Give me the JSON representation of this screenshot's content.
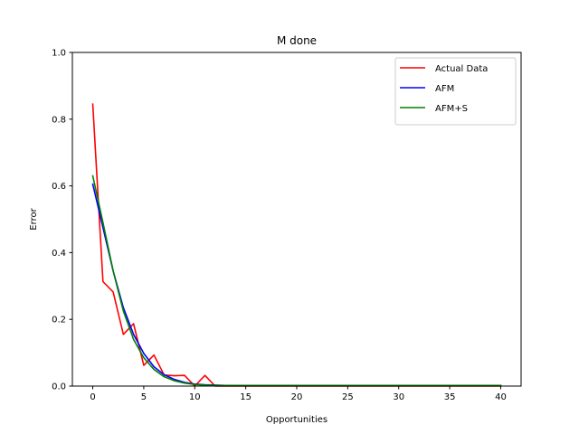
{
  "chart_data": {
    "type": "line",
    "title": "M  done",
    "xlabel": "Opportunities",
    "ylabel": "Error",
    "xlim": [
      -2,
      42
    ],
    "ylim": [
      0,
      1.0
    ],
    "xticks": [
      "0",
      "5",
      "10",
      "15",
      "20",
      "25",
      "30",
      "35",
      "40"
    ],
    "yticks": [
      "0.0",
      "0.2",
      "0.4",
      "0.6",
      "0.8",
      "1.0"
    ],
    "grid": false,
    "legend_position": "top-right",
    "series": [
      {
        "name": "Actual Data",
        "color": "#ff0000",
        "x": [
          0,
          1,
          2,
          3,
          4,
          5,
          6,
          7,
          8,
          9,
          10,
          11,
          12,
          13,
          14,
          15,
          16,
          17,
          18,
          19,
          20,
          21,
          22,
          23,
          24,
          25,
          26,
          27,
          28,
          29,
          30,
          31,
          32,
          33,
          34,
          35,
          36,
          37,
          38,
          39,
          40
        ],
        "values": [
          0.845,
          0.313,
          0.282,
          0.155,
          0.187,
          0.062,
          0.093,
          0.033,
          0.031,
          0.032,
          0.0,
          0.032,
          0.0,
          0,
          0,
          0,
          0,
          0,
          0,
          0,
          0,
          0,
          0,
          0,
          0,
          0,
          0,
          0,
          0,
          0,
          0,
          0,
          0,
          0,
          0,
          0,
          0,
          0,
          0,
          0,
          0
        ]
      },
      {
        "name": "AFM",
        "color": "#0000ff",
        "x": [
          0,
          1,
          2,
          3,
          4,
          5,
          6,
          7,
          8,
          9,
          10,
          11,
          12,
          13,
          14,
          15,
          16,
          17,
          18,
          19,
          20,
          21,
          22,
          23,
          24,
          25,
          26,
          27,
          28,
          29,
          30,
          31,
          32,
          33,
          34,
          35,
          36,
          37,
          38,
          39,
          40
        ],
        "values": [
          0.605,
          0.475,
          0.345,
          0.235,
          0.155,
          0.098,
          0.058,
          0.034,
          0.02,
          0.011,
          0.006,
          0.004,
          0.003,
          0.002,
          0.002,
          0.002,
          0.002,
          0.002,
          0.002,
          0.002,
          0.002,
          0.002,
          0.002,
          0.002,
          0.002,
          0.002,
          0.002,
          0.002,
          0.002,
          0.002,
          0.002,
          0.002,
          0.002,
          0.002,
          0.002,
          0.002,
          0.002,
          0.002,
          0.002,
          0.002,
          0.002
        ]
      },
      {
        "name": "AFM+S",
        "color": "#008000",
        "x": [
          0,
          1,
          2,
          3,
          4,
          5,
          6,
          7,
          8,
          9,
          10,
          11,
          12,
          13,
          14,
          15,
          16,
          17,
          18,
          19,
          20,
          21,
          22,
          23,
          24,
          25,
          26,
          27,
          28,
          29,
          30,
          31,
          32,
          33,
          34,
          35,
          36,
          37,
          38,
          39,
          40
        ],
        "values": [
          0.63,
          0.49,
          0.345,
          0.225,
          0.14,
          0.085,
          0.05,
          0.028,
          0.016,
          0.009,
          0.005,
          0.003,
          0.002,
          0.002,
          0.002,
          0.002,
          0.002,
          0.002,
          0.002,
          0.002,
          0.002,
          0.002,
          0.002,
          0.002,
          0.002,
          0.002,
          0.002,
          0.002,
          0.002,
          0.002,
          0.002,
          0.002,
          0.002,
          0.002,
          0.002,
          0.002,
          0.002,
          0.002,
          0.002,
          0.002,
          0.002
        ]
      }
    ]
  }
}
